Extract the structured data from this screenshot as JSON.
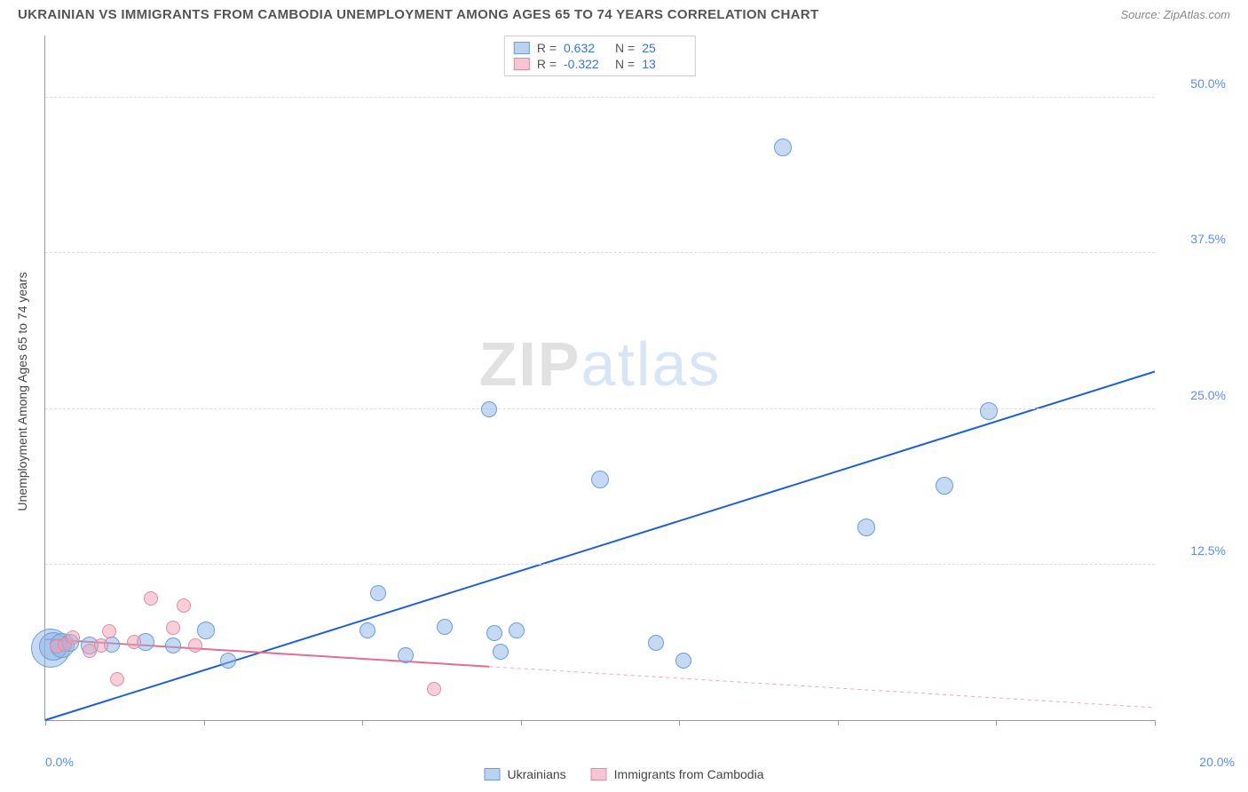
{
  "header": {
    "title": "UKRAINIAN VS IMMIGRANTS FROM CAMBODIA UNEMPLOYMENT AMONG AGES 65 TO 74 YEARS CORRELATION CHART",
    "source": "Source: ZipAtlas.com"
  },
  "chart": {
    "type": "scatter",
    "ylabel": "Unemployment Among Ages 65 to 74 years",
    "xlim": [
      0,
      20
    ],
    "ylim": [
      0,
      55
    ],
    "xtick_positions": [
      0,
      2.86,
      5.71,
      8.57,
      11.43,
      14.28,
      17.14,
      20
    ],
    "yticks": [
      {
        "value": 12.5,
        "label": "12.5%"
      },
      {
        "value": 25.0,
        "label": "25.0%"
      },
      {
        "value": 37.5,
        "label": "37.5%"
      },
      {
        "value": 50.0,
        "label": "50.0%"
      }
    ],
    "xlabel_start": "0.0%",
    "xlabel_end": "20.0%",
    "grid_color": "#dddddd",
    "axis_color": "#999999",
    "background_color": "#ffffff",
    "series": [
      {
        "name": "Ukrainians",
        "color_fill": "rgba(140,180,230,0.5)",
        "color_stroke": "#6a9edb",
        "R": 0.632,
        "N": 25,
        "trend": {
          "x1": 0,
          "y1": 0,
          "x2": 20,
          "y2": 28,
          "solid_until_x": 20,
          "stroke": "#1d5fd6",
          "width": 2
        },
        "points": [
          {
            "x": 0.1,
            "y": 5.8,
            "r": 22
          },
          {
            "x": 0.15,
            "y": 5.9,
            "r": 16
          },
          {
            "x": 0.3,
            "y": 6.0,
            "r": 14
          },
          {
            "x": 0.45,
            "y": 6.2,
            "r": 10
          },
          {
            "x": 0.8,
            "y": 6.0,
            "r": 10
          },
          {
            "x": 1.2,
            "y": 6.1,
            "r": 9
          },
          {
            "x": 1.8,
            "y": 6.3,
            "r": 10
          },
          {
            "x": 2.3,
            "y": 6.0,
            "r": 9
          },
          {
            "x": 2.9,
            "y": 7.2,
            "r": 10
          },
          {
            "x": 3.3,
            "y": 4.8,
            "r": 9
          },
          {
            "x": 5.8,
            "y": 7.2,
            "r": 9
          },
          {
            "x": 6.0,
            "y": 10.2,
            "r": 9
          },
          {
            "x": 6.5,
            "y": 5.2,
            "r": 9
          },
          {
            "x": 7.2,
            "y": 7.5,
            "r": 9
          },
          {
            "x": 8.1,
            "y": 7.0,
            "r": 9
          },
          {
            "x": 8.2,
            "y": 5.5,
            "r": 9
          },
          {
            "x": 8.5,
            "y": 7.2,
            "r": 9
          },
          {
            "x": 8.0,
            "y": 25.0,
            "r": 9
          },
          {
            "x": 10.0,
            "y": 19.3,
            "r": 10
          },
          {
            "x": 11.0,
            "y": 6.2,
            "r": 9
          },
          {
            "x": 11.5,
            "y": 4.8,
            "r": 9
          },
          {
            "x": 13.3,
            "y": 46.0,
            "r": 10
          },
          {
            "x": 14.8,
            "y": 15.5,
            "r": 10
          },
          {
            "x": 16.2,
            "y": 18.8,
            "r": 10
          },
          {
            "x": 17.0,
            "y": 24.8,
            "r": 10
          }
        ]
      },
      {
        "name": "Immigrants from Cambodia",
        "color_fill": "rgba(240,160,180,0.5)",
        "color_stroke": "#e08aa5",
        "R": -0.322,
        "N": 13,
        "trend": {
          "x1": 0,
          "y1": 6.5,
          "x2": 20,
          "y2": 1.0,
          "solid_until_x": 8,
          "stroke": "#e76b8f",
          "width": 2
        },
        "points": [
          {
            "x": 0.2,
            "y": 5.9,
            "r": 8
          },
          {
            "x": 0.35,
            "y": 6.1,
            "r": 8
          },
          {
            "x": 0.5,
            "y": 6.6,
            "r": 8
          },
          {
            "x": 0.8,
            "y": 5.6,
            "r": 8
          },
          {
            "x": 1.0,
            "y": 6.0,
            "r": 8
          },
          {
            "x": 1.15,
            "y": 7.1,
            "r": 8
          },
          {
            "x": 1.3,
            "y": 3.3,
            "r": 8
          },
          {
            "x": 1.6,
            "y": 6.3,
            "r": 8
          },
          {
            "x": 1.9,
            "y": 9.8,
            "r": 8
          },
          {
            "x": 2.3,
            "y": 7.4,
            "r": 8
          },
          {
            "x": 2.5,
            "y": 9.2,
            "r": 8
          },
          {
            "x": 2.7,
            "y": 6.0,
            "r": 8
          },
          {
            "x": 7.0,
            "y": 2.5,
            "r": 8
          }
        ]
      }
    ],
    "legend_top": {
      "rows": [
        {
          "swatch": "blue",
          "r_label": "R =",
          "r_value": "0.632",
          "n_label": "N =",
          "n_value": "25"
        },
        {
          "swatch": "pink",
          "r_label": "R =",
          "r_value": "-0.322",
          "n_label": "N =",
          "n_value": "13"
        }
      ]
    },
    "legend_bottom": [
      {
        "swatch": "blue",
        "label": "Ukrainians"
      },
      {
        "swatch": "pink",
        "label": "Immigrants from Cambodia"
      }
    ],
    "watermark": {
      "bold": "ZIP",
      "rest": "atlas"
    }
  }
}
